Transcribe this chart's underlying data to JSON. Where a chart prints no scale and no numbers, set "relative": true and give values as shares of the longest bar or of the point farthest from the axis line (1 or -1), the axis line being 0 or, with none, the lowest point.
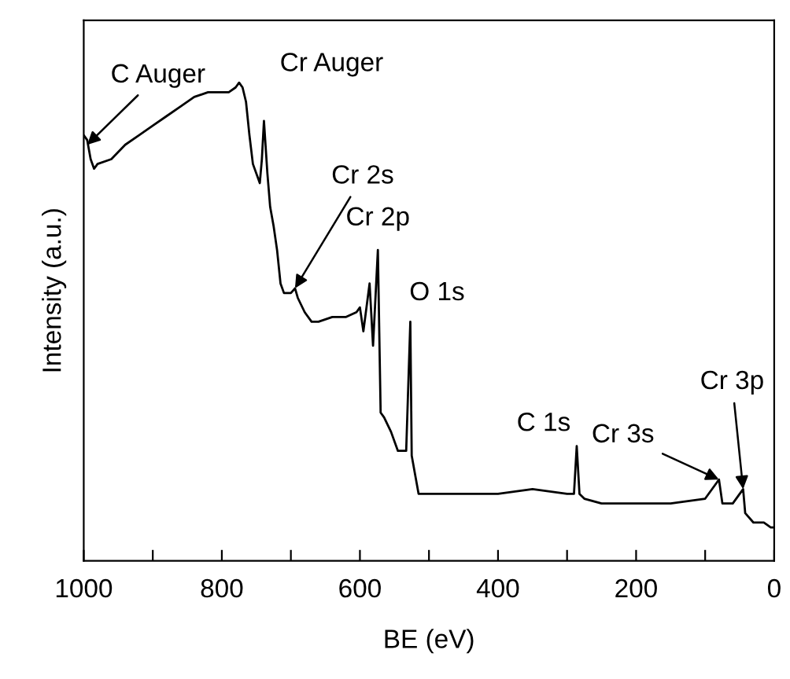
{
  "chart_data": {
    "type": "line",
    "relative": true,
    "xlabel": "BE (eV)",
    "ylabel": "Intensity (a.u.)",
    "xlim": [
      1000,
      0
    ],
    "xticks": [
      1000,
      {
        "value": 900,
        "label": null
      },
      800,
      {
        "value": 700,
        "label": null
      },
      600,
      {
        "value": 500,
        "label": null
      },
      400,
      {
        "value": 300,
        "label": null
      },
      200,
      {
        "value": 100,
        "label": null
      },
      0
    ],
    "x": [
      1000,
      995,
      990,
      985,
      980,
      960,
      940,
      920,
      900,
      880,
      860,
      840,
      820,
      800,
      790,
      780,
      775,
      770,
      765,
      760,
      755,
      745,
      742,
      739,
      734,
      730,
      725,
      720,
      715,
      710,
      700,
      694,
      690,
      680,
      670,
      660,
      640,
      620,
      605,
      600,
      595,
      586,
      581,
      574,
      570,
      565,
      555,
      545,
      533,
      527,
      525,
      520,
      515,
      500,
      450,
      400,
      350,
      300,
      290,
      286,
      282,
      275,
      250,
      200,
      150,
      100,
      80,
      75,
      60,
      45,
      42,
      30,
      15,
      5,
      0
    ],
    "series": [
      {
        "color": "#000000",
        "values": [
          0.89,
          0.88,
          0.84,
          0.82,
          0.83,
          0.84,
          0.87,
          0.89,
          0.91,
          0.93,
          0.95,
          0.97,
          0.98,
          0.98,
          0.98,
          0.99,
          1.0,
          0.99,
          0.96,
          0.89,
          0.83,
          0.79,
          0.84,
          0.92,
          0.81,
          0.74,
          0.7,
          0.65,
          0.58,
          0.56,
          0.56,
          0.57,
          0.55,
          0.52,
          0.5,
          0.5,
          0.51,
          0.51,
          0.52,
          0.53,
          0.48,
          0.58,
          0.45,
          0.65,
          0.31,
          0.3,
          0.27,
          0.23,
          0.23,
          0.5,
          0.22,
          0.18,
          0.14,
          0.14,
          0.14,
          0.14,
          0.15,
          0.14,
          0.14,
          0.24,
          0.14,
          0.13,
          0.12,
          0.12,
          0.12,
          0.13,
          0.17,
          0.12,
          0.12,
          0.15,
          0.1,
          0.08,
          0.08,
          0.07,
          0.07
        ]
      }
    ],
    "annotations": [
      {
        "text": "C Auger",
        "x": 995,
        "y": 0.87
      },
      {
        "text": "Cr Auger",
        "x": 739,
        "y": 0.92
      },
      {
        "text": "Cr 2s",
        "x": 694,
        "y": 0.57
      },
      {
        "text": "Cr 2p",
        "x": 574,
        "y": 0.65
      },
      {
        "text": "O 1s",
        "x": 527,
        "y": 0.5
      },
      {
        "text": "C 1s",
        "x": 286,
        "y": 0.24
      },
      {
        "text": "Cr 3s",
        "x": 80,
        "y": 0.17
      },
      {
        "text": "Cr 3p",
        "x": 45,
        "y": 0.15
      }
    ]
  }
}
